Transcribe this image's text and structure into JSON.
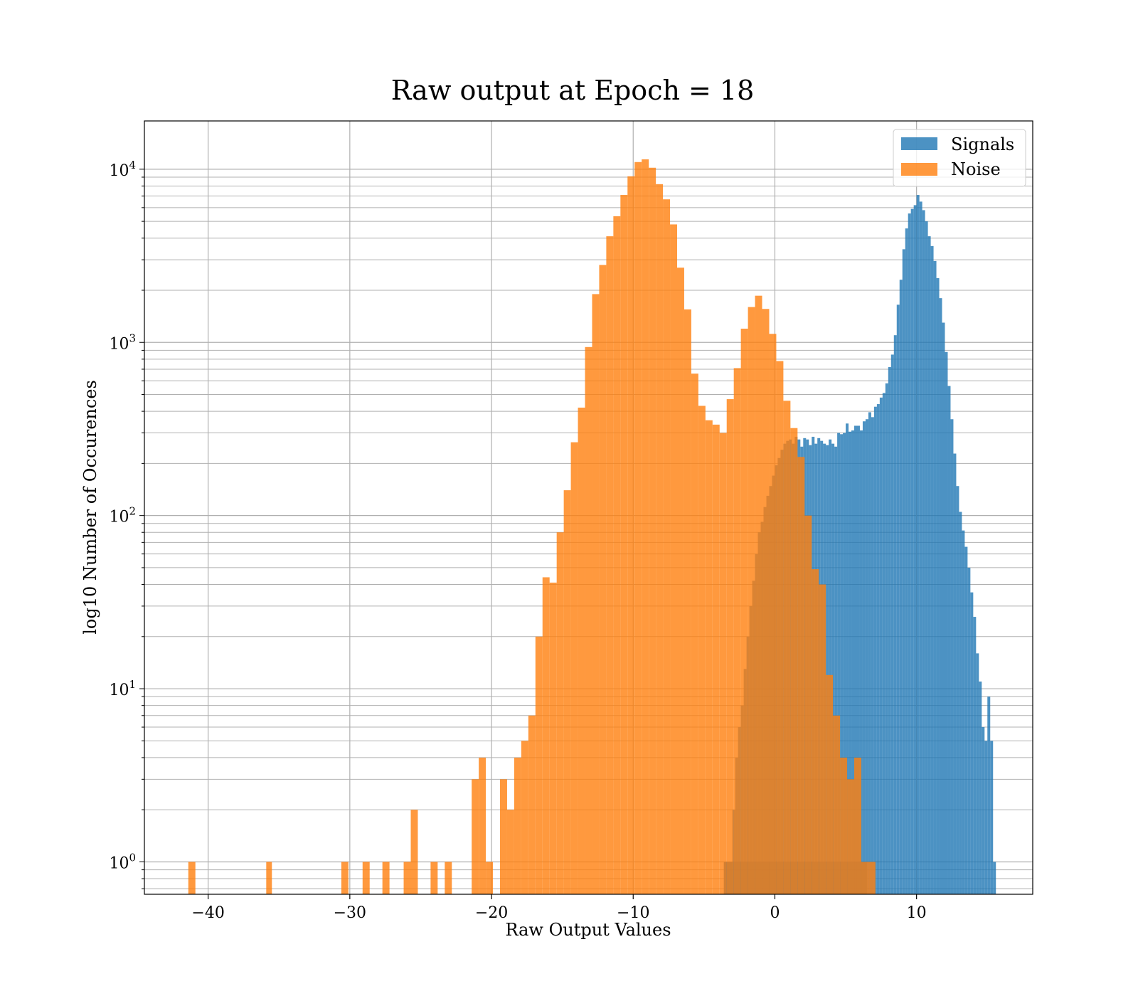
{
  "chart_data": {
    "type": "histogram",
    "title": "Raw output at Epoch = 18",
    "xlabel": "Raw Output Values",
    "ylabel": "log10 Number of Occurences",
    "xlim": [
      -44.5,
      18.2
    ],
    "ylim": [
      0.65,
      19000
    ],
    "y_scale": "log",
    "x_ticks": [
      {
        "value": -40,
        "label": "−40"
      },
      {
        "value": -30,
        "label": "−30"
      },
      {
        "value": -20,
        "label": "−20"
      },
      {
        "value": -10,
        "label": "−10"
      },
      {
        "value": 0,
        "label": "0"
      },
      {
        "value": 10,
        "label": "10"
      }
    ],
    "y_ticks": [
      {
        "value": 1,
        "label": "10",
        "exp": "0"
      },
      {
        "value": 10,
        "label": "10",
        "exp": "1"
      },
      {
        "value": 100,
        "label": "10",
        "exp": "2"
      },
      {
        "value": 1000,
        "label": "10",
        "exp": "3"
      }
    ],
    "y_ticks_extra": [
      {
        "value": 10000,
        "label": "10",
        "exp": "4"
      }
    ],
    "grid": true,
    "legend_position": "top-right",
    "series": [
      {
        "name": "Signals",
        "color": "#1f77b4",
        "alpha": 0.8,
        "bins": [
          [
            -3.6,
            6.5,
            1
          ],
          [
            -3.6,
            -3.4,
            1
          ],
          [
            -3.4,
            -3.2,
            1
          ],
          [
            -3.2,
            -3.0,
            1
          ],
          [
            -3.0,
            -2.8,
            2
          ],
          [
            -2.8,
            -2.6,
            4
          ],
          [
            -2.6,
            -2.4,
            6
          ],
          [
            -2.4,
            -2.2,
            8
          ],
          [
            -2.2,
            -2.0,
            13
          ],
          [
            -2.0,
            -1.8,
            20
          ],
          [
            -1.8,
            -1.6,
            30
          ],
          [
            -1.6,
            -1.4,
            42
          ],
          [
            -1.4,
            -1.2,
            60
          ],
          [
            -1.2,
            -1.0,
            80
          ],
          [
            -1.0,
            -0.8,
            92
          ],
          [
            -0.8,
            -0.6,
            112
          ],
          [
            -0.6,
            -0.4,
            130
          ],
          [
            -0.4,
            -0.2,
            148
          ],
          [
            -0.2,
            0.0,
            170
          ],
          [
            0.0,
            0.2,
            195
          ],
          [
            0.2,
            0.4,
            215
          ],
          [
            0.4,
            0.6,
            240
          ],
          [
            0.6,
            0.8,
            260
          ],
          [
            0.8,
            1.0,
            270
          ],
          [
            1.0,
            1.2,
            275
          ],
          [
            1.2,
            1.4,
            260
          ],
          [
            1.4,
            1.6,
            285
          ],
          [
            1.6,
            1.8,
            275
          ],
          [
            1.8,
            2.0,
            250
          ],
          [
            2.0,
            2.2,
            280
          ],
          [
            2.2,
            2.4,
            275
          ],
          [
            2.4,
            2.6,
            255
          ],
          [
            2.6,
            2.8,
            285
          ],
          [
            2.8,
            3.0,
            260
          ],
          [
            3.0,
            3.2,
            280
          ],
          [
            3.2,
            3.4,
            270
          ],
          [
            3.4,
            3.6,
            260
          ],
          [
            3.6,
            3.8,
            255
          ],
          [
            3.8,
            4.0,
            275
          ],
          [
            4.0,
            4.2,
            260
          ],
          [
            4.2,
            4.4,
            250
          ],
          [
            4.4,
            4.6,
            300
          ],
          [
            4.6,
            4.8,
            295
          ],
          [
            4.8,
            5.0,
            300
          ],
          [
            5.0,
            5.2,
            340
          ],
          [
            5.2,
            5.4,
            305
          ],
          [
            5.4,
            5.6,
            310
          ],
          [
            5.6,
            5.8,
            330
          ],
          [
            5.8,
            6.0,
            330
          ],
          [
            6.0,
            6.2,
            310
          ],
          [
            6.2,
            6.4,
            350
          ],
          [
            6.4,
            6.6,
            360
          ],
          [
            6.6,
            6.8,
            395
          ],
          [
            6.8,
            7.0,
            370
          ],
          [
            7.0,
            7.2,
            425
          ],
          [
            7.2,
            7.4,
            440
          ],
          [
            7.4,
            7.6,
            480
          ],
          [
            7.6,
            7.8,
            510
          ],
          [
            7.8,
            8.0,
            580
          ],
          [
            8.0,
            8.2,
            720
          ],
          [
            8.2,
            8.4,
            850
          ],
          [
            8.4,
            8.6,
            1100
          ],
          [
            8.6,
            8.8,
            1650
          ],
          [
            8.8,
            9.0,
            2300
          ],
          [
            9.0,
            9.2,
            3450
          ],
          [
            9.2,
            9.4,
            4550
          ],
          [
            9.4,
            9.6,
            5550
          ],
          [
            9.6,
            9.8,
            5900
          ],
          [
            9.8,
            10.0,
            6200
          ],
          [
            10.0,
            10.2,
            7100
          ],
          [
            10.2,
            10.4,
            6500
          ],
          [
            10.4,
            10.6,
            5800
          ],
          [
            10.6,
            10.8,
            5000
          ],
          [
            10.8,
            11.0,
            4100
          ],
          [
            11.0,
            11.2,
            3600
          ],
          [
            11.2,
            11.4,
            2950
          ],
          [
            11.4,
            11.6,
            2350
          ],
          [
            11.6,
            11.8,
            1800
          ],
          [
            11.8,
            12.0,
            1300
          ],
          [
            12.0,
            12.2,
            880
          ],
          [
            12.2,
            12.4,
            560
          ],
          [
            12.4,
            12.6,
            360
          ],
          [
            12.6,
            12.8,
            228
          ],
          [
            12.8,
            13.0,
            148
          ],
          [
            13.0,
            13.2,
            105
          ],
          [
            13.2,
            13.4,
            82
          ],
          [
            13.4,
            13.6,
            66
          ],
          [
            13.6,
            13.8,
            50
          ],
          [
            13.8,
            14.0,
            36
          ],
          [
            14.0,
            14.2,
            26
          ],
          [
            14.2,
            14.4,
            16
          ],
          [
            14.4,
            14.6,
            11
          ],
          [
            14.6,
            14.8,
            6
          ],
          [
            14.8,
            15.0,
            5
          ],
          [
            15.0,
            15.2,
            9
          ],
          [
            15.2,
            15.4,
            5
          ],
          [
            15.4,
            15.6,
            1
          ]
        ]
      },
      {
        "name": "Noise",
        "color": "#ff7f0e",
        "alpha": 0.8,
        "bins": [
          [
            -41.4,
            -40.9,
            1
          ],
          [
            -35.9,
            -35.5,
            1
          ],
          [
            -30.6,
            -30.1,
            1
          ],
          [
            -29.1,
            -28.6,
            1
          ],
          [
            -27.7,
            -27.2,
            1
          ],
          [
            -26.2,
            -25.7,
            1
          ],
          [
            -25.7,
            -25.2,
            2
          ],
          [
            -24.3,
            -23.8,
            1
          ],
          [
            -23.3,
            -22.8,
            1
          ],
          [
            -21.4,
            -20.9,
            3
          ],
          [
            -20.9,
            -20.4,
            4
          ],
          [
            -20.4,
            -19.9,
            1
          ],
          [
            -19.4,
            -18.9,
            3
          ],
          [
            -18.9,
            -18.4,
            2
          ],
          [
            -18.4,
            -17.9,
            4
          ],
          [
            -17.9,
            -17.4,
            5
          ],
          [
            -17.4,
            -16.9,
            7
          ],
          [
            -16.9,
            -16.4,
            20
          ],
          [
            -16.4,
            -15.9,
            44
          ],
          [
            -15.9,
            -15.4,
            41
          ],
          [
            -15.4,
            -14.9,
            80
          ],
          [
            -14.9,
            -14.4,
            140
          ],
          [
            -14.4,
            -13.9,
            265
          ],
          [
            -13.9,
            -13.4,
            420
          ],
          [
            -13.4,
            -12.9,
            940
          ],
          [
            -12.9,
            -12.4,
            1900
          ],
          [
            -12.4,
            -11.9,
            2800
          ],
          [
            -11.9,
            -11.4,
            4100
          ],
          [
            -11.4,
            -10.9,
            5350
          ],
          [
            -10.9,
            -10.4,
            7100
          ],
          [
            -10.4,
            -9.9,
            9100
          ],
          [
            -9.9,
            -9.4,
            11000
          ],
          [
            -9.4,
            -8.9,
            11400
          ],
          [
            -8.9,
            -8.4,
            10200
          ],
          [
            -8.4,
            -7.9,
            8200
          ],
          [
            -7.9,
            -7.4,
            6700
          ],
          [
            -7.4,
            -6.9,
            4800
          ],
          [
            -6.9,
            -6.4,
            2700
          ],
          [
            -6.4,
            -5.9,
            1550
          ],
          [
            -5.9,
            -5.4,
            660
          ],
          [
            -5.4,
            -4.9,
            430
          ],
          [
            -4.9,
            -4.4,
            355
          ],
          [
            -4.4,
            -3.9,
            335
          ],
          [
            -3.9,
            -3.4,
            300
          ],
          [
            -3.4,
            -2.9,
            470
          ],
          [
            -2.9,
            -2.4,
            710
          ],
          [
            -2.4,
            -1.9,
            1200
          ],
          [
            -1.9,
            -1.4,
            1600
          ],
          [
            -1.4,
            -0.9,
            1860
          ],
          [
            -0.9,
            -0.4,
            1560
          ],
          [
            -0.4,
            0.1,
            1120
          ],
          [
            0.1,
            0.6,
            780
          ],
          [
            0.6,
            1.1,
            460
          ],
          [
            1.1,
            1.6,
            320
          ],
          [
            1.6,
            2.1,
            218
          ],
          [
            2.1,
            2.6,
            100
          ],
          [
            2.6,
            3.1,
            49
          ],
          [
            3.1,
            3.6,
            40
          ],
          [
            3.6,
            4.1,
            12
          ],
          [
            4.1,
            4.6,
            7
          ],
          [
            4.6,
            5.1,
            4
          ],
          [
            5.1,
            5.6,
            3
          ],
          [
            5.6,
            6.1,
            4
          ],
          [
            6.1,
            6.6,
            1
          ],
          [
            6.6,
            7.1,
            1
          ]
        ]
      }
    ]
  }
}
